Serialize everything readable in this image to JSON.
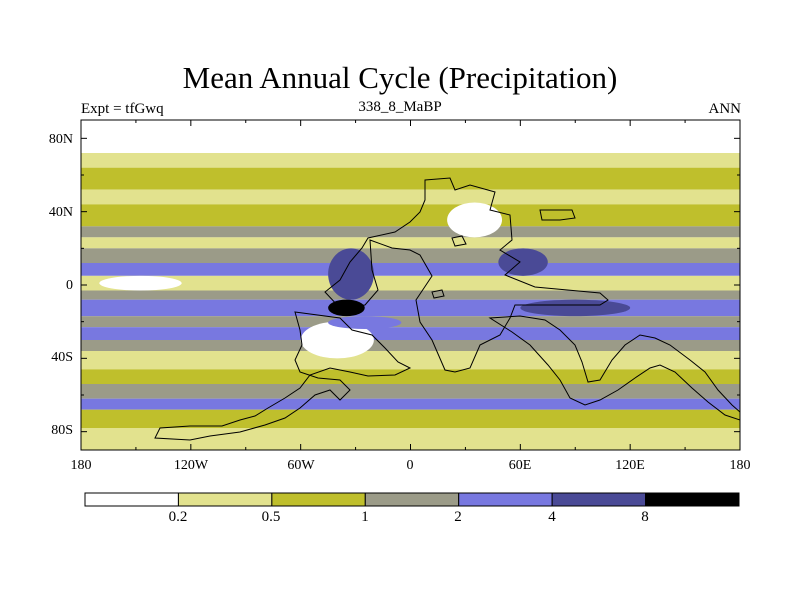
{
  "title": "Mean Annual Cycle (Precipitation)",
  "left_label": "Expt = tfGwq",
  "center_label": "338_8_MaBP",
  "right_label": "ANN",
  "y_axis": {
    "ticks": [
      "80N",
      "40N",
      "0",
      "40S",
      "80S"
    ]
  },
  "x_axis": {
    "ticks": [
      "180",
      "120W",
      "60W",
      "0",
      "60E",
      "120E",
      "180"
    ]
  },
  "colorbar": {
    "levels": [
      "0.2",
      "0.5",
      "1",
      "2",
      "4",
      "8"
    ],
    "colors": [
      "#ffffff",
      "#e2e28e",
      "#bfbf2c",
      "#9b9b88",
      "#7878e0",
      "#4a4a96",
      "#000000"
    ]
  },
  "chart_data": {
    "type": "heatmap",
    "title": "Mean Annual Cycle (Precipitation)",
    "variable": "Precipitation",
    "experiment": "tfGwq",
    "period": "338_8_MaBP",
    "season": "ANN",
    "xrange": [
      -180,
      180
    ],
    "yrange": [
      -90,
      90
    ],
    "contour_levels": [
      0.2,
      0.5,
      1,
      2,
      4,
      8
    ],
    "zonal_bands": [
      {
        "lat": [
          72,
          90
        ],
        "class": 0
      },
      {
        "lat": [
          64,
          72
        ],
        "class": 1
      },
      {
        "lat": [
          52,
          64
        ],
        "class": 2
      },
      {
        "lat": [
          44,
          52
        ],
        "class": 1
      },
      {
        "lat": [
          32,
          44
        ],
        "class": 2
      },
      {
        "lat": [
          26,
          32
        ],
        "class": 3
      },
      {
        "lat": [
          20,
          26
        ],
        "class": 1
      },
      {
        "lat": [
          12,
          20
        ],
        "class": 3
      },
      {
        "lat": [
          5,
          12
        ],
        "class": 4
      },
      {
        "lat": [
          -3,
          5
        ],
        "class": 1
      },
      {
        "lat": [
          -8,
          -3
        ],
        "class": 3
      },
      {
        "lat": [
          -17,
          -8
        ],
        "class": 4
      },
      {
        "lat": [
          -23,
          -17
        ],
        "class": 3
      },
      {
        "lat": [
          -30,
          -23
        ],
        "class": 4
      },
      {
        "lat": [
          -36,
          -30
        ],
        "class": 3
      },
      {
        "lat": [
          -46,
          -36
        ],
        "class": 1
      },
      {
        "lat": [
          -54,
          -46
        ],
        "class": 2
      },
      {
        "lat": [
          -62,
          -54
        ],
        "class": 3
      },
      {
        "lat": [
          -68,
          -62
        ],
        "class": 4
      },
      {
        "lat": [
          -78,
          -68
        ],
        "class": 2
      },
      {
        "lat": [
          -90,
          -78
        ],
        "class": 1
      }
    ],
    "features": [
      {
        "name": "monsoon-core",
        "lon": [
          48,
          75
        ],
        "lat": [
          5,
          20
        ],
        "class": 5
      },
      {
        "name": "amazon-core",
        "lon": [
          -45,
          -20
        ],
        "lat": [
          -8,
          20
        ],
        "class": 5
      },
      {
        "name": "itcz-maximum",
        "lon": [
          -45,
          -25
        ],
        "lat": [
          -17,
          -8
        ],
        "class": 6
      },
      {
        "name": "atlantic-dry",
        "lon": [
          -60,
          -20
        ],
        "lat": [
          -40,
          -20
        ],
        "class": 0
      },
      {
        "name": "equatorial-dry",
        "lon": [
          -170,
          -125
        ],
        "lat": [
          -3,
          5
        ],
        "class": 0
      },
      {
        "name": "asia-dry",
        "lon": [
          20,
          50
        ],
        "lat": [
          26,
          45
        ],
        "class": 0
      },
      {
        "name": "indian-wet",
        "lon": [
          60,
          120
        ],
        "lat": [
          -17,
          -8
        ],
        "class": 5
      },
      {
        "name": "south-atlantic-wet",
        "lon": [
          -45,
          -5
        ],
        "lat": [
          -24,
          -17
        ],
        "class": 4
      }
    ]
  }
}
